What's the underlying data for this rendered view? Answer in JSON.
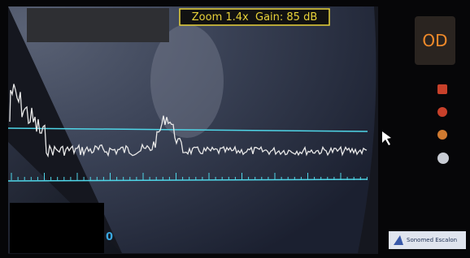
{
  "header": {
    "zoom_gain": "Zoom 1.4x  Gain: 85 dB"
  },
  "eye": "OD",
  "depth_label": "0",
  "brand": "Sonomed Escalon"
}
